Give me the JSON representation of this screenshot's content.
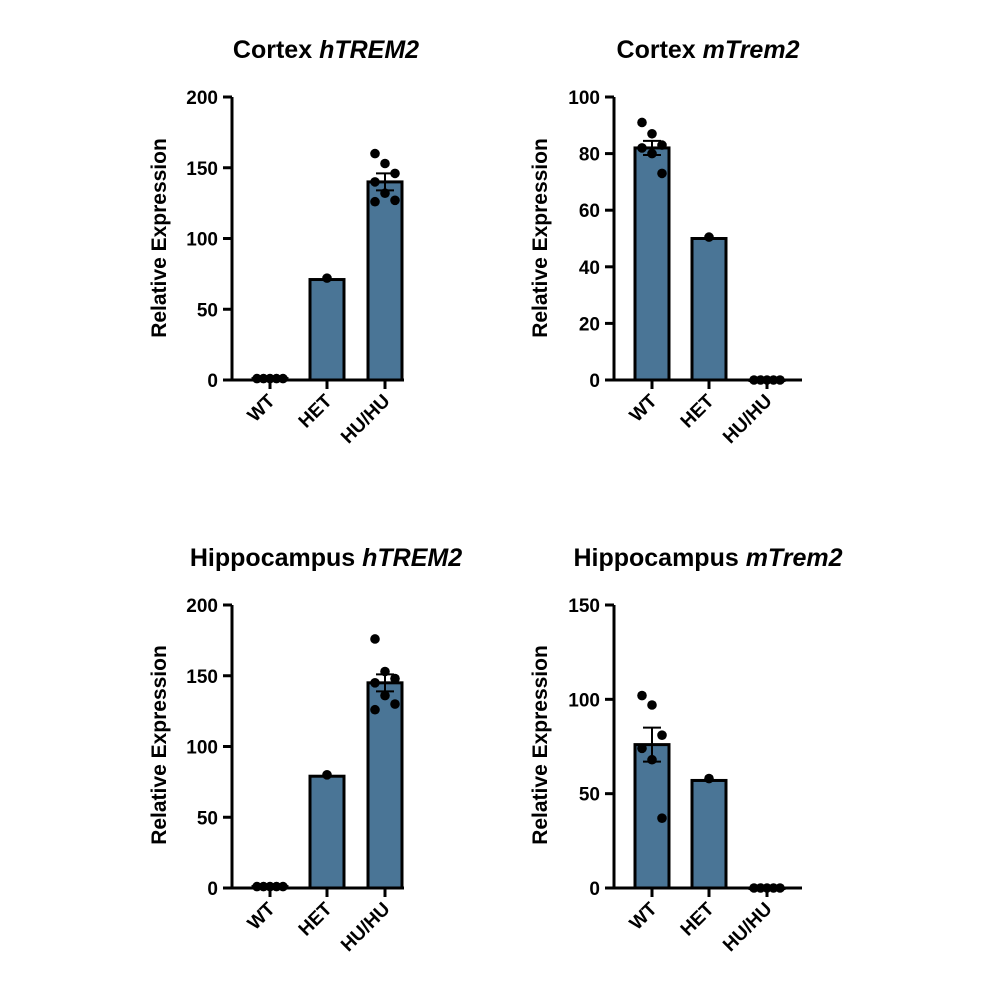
{
  "bar_color": "#4a7596",
  "chart_data": [
    {
      "type": "bar",
      "title_prefix": "Cortex ",
      "title_gene": "hTREM2",
      "ylabel": "Relative Expression",
      "categories": [
        "WT",
        "HET",
        "HU/HU"
      ],
      "values": [
        1,
        71,
        140
      ],
      "sem": [
        0,
        0,
        6
      ],
      "ylim": [
        0,
        200
      ],
      "yticks": [
        0,
        50,
        100,
        150,
        200
      ],
      "points": [
        [
          1,
          1,
          1,
          1,
          1
        ],
        [
          72
        ],
        [
          160,
          153,
          146,
          140,
          132,
          127,
          126
        ]
      ]
    },
    {
      "type": "bar",
      "title_prefix": "Cortex ",
      "title_gene": "mTrem2",
      "ylabel": "Relative Expression",
      "categories": [
        "WT",
        "HET",
        "HU/HU"
      ],
      "values": [
        82,
        50,
        0
      ],
      "sem": [
        2.5,
        0,
        0
      ],
      "ylim": [
        0,
        100
      ],
      "yticks": [
        0,
        20,
        40,
        60,
        80,
        100
      ],
      "points": [
        [
          91,
          87,
          83,
          82,
          80,
          73
        ],
        [
          50.5
        ],
        [
          0,
          0,
          0,
          0,
          0
        ]
      ]
    },
    {
      "type": "bar",
      "title_prefix": "Hippocampus ",
      "title_gene": "hTREM2",
      "ylabel": "Relative Expression",
      "categories": [
        "WT",
        "HET",
        "HU/HU"
      ],
      "values": [
        1,
        79,
        145
      ],
      "sem": [
        0,
        0,
        6
      ],
      "ylim": [
        0,
        200
      ],
      "yticks": [
        0,
        50,
        100,
        150,
        200
      ],
      "points": [
        [
          1,
          1,
          1,
          1,
          1
        ],
        [
          80
        ],
        [
          176,
          153,
          148,
          145,
          136,
          130,
          126
        ]
      ]
    },
    {
      "type": "bar",
      "title_prefix": "Hippocampus ",
      "title_gene": "mTrem2",
      "ylabel": "Relative Expression",
      "categories": [
        "WT",
        "HET",
        "HU/HU"
      ],
      "values": [
        76,
        57,
        0
      ],
      "sem": [
        9,
        0,
        0
      ],
      "ylim": [
        0,
        150
      ],
      "yticks": [
        0,
        50,
        100,
        150
      ],
      "points": [
        [
          102,
          97,
          81,
          74,
          68,
          37
        ],
        [
          58
        ],
        [
          0,
          0,
          0,
          0,
          0
        ]
      ]
    }
  ]
}
